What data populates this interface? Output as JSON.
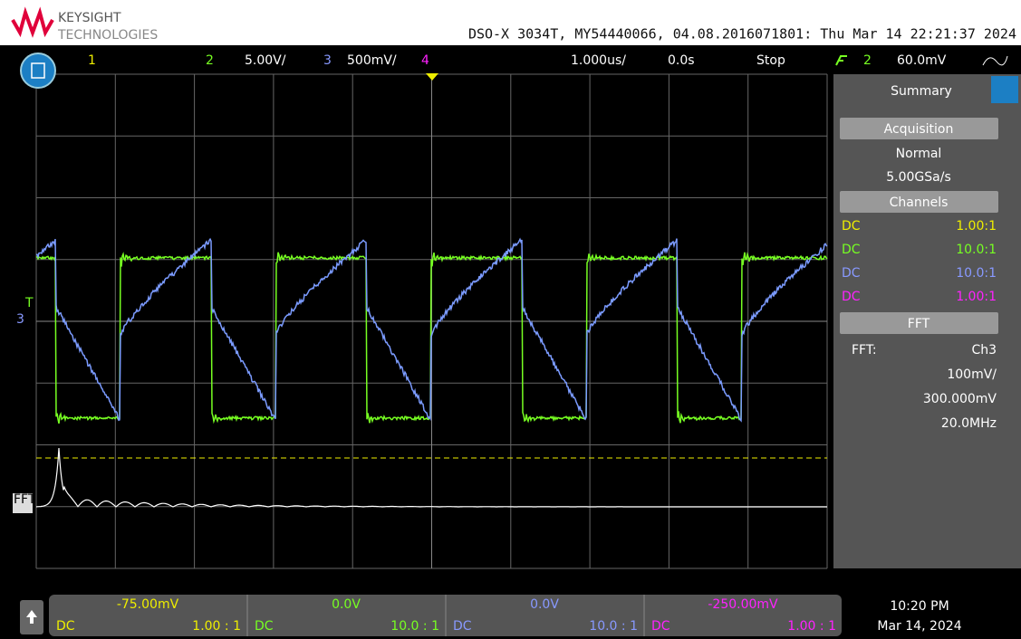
{
  "header": {
    "brand": "KEYSIGHT",
    "brand_sub": "TECHNOLOGIES",
    "info": "DSO-X 3034T, MY54440066, 04.08.2016071801: Thu Mar 14 22:21:37 2024"
  },
  "top_bar": {
    "ch1": "1",
    "ch2": "2",
    "ch2_scale": "5.00V/",
    "ch3": "3",
    "ch3_scale": "500mV/",
    "ch4": "4",
    "timebase": "1.000us/",
    "delay": "0.0s",
    "run_state": "Stop",
    "trig_source": "2",
    "trig_level": "60.0mV"
  },
  "marker": {
    "trigger": "T",
    "ch3": "3",
    "fft": "FFT"
  },
  "panel": {
    "title": "Summary",
    "acquisition": "Acquisition",
    "mode": "Normal",
    "rate": "5.00GSa/s",
    "channels": "Channels",
    "channel_rows": [
      {
        "coupling": "DC",
        "probe": "1.00:1"
      },
      {
        "coupling": "DC",
        "probe": "10.0:1"
      },
      {
        "coupling": "DC",
        "probe": "10.0:1"
      },
      {
        "coupling": "DC",
        "probe": "1.00:1"
      }
    ],
    "fft": "FFT",
    "fft_label": "FFT:",
    "fft_source": "Ch3",
    "fft_scale": "100mV/",
    "fft_offset": "300.000mV",
    "fft_span": "20.0MHz"
  },
  "bottom": {
    "channels": [
      {
        "offset": "-75.00mV",
        "coupling": "DC",
        "probe": "1.00 : 1"
      },
      {
        "offset": "0.0V",
        "coupling": "DC",
        "probe": "10.0 : 1"
      },
      {
        "offset": "0.0V",
        "coupling": "DC",
        "probe": "10.0 : 1"
      },
      {
        "offset": "-250.00mV",
        "coupling": "DC",
        "probe": "1.00 : 1"
      }
    ],
    "time": "10:20 PM",
    "date": "Mar 14, 2024"
  }
}
